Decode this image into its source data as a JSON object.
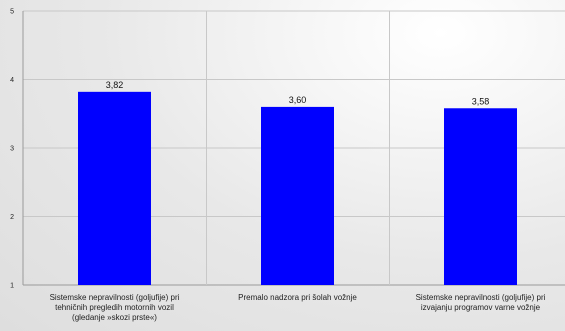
{
  "chart_data": {
    "type": "bar",
    "categories": [
      [
        "Sistemske nepravilnosti (goljufije) pri",
        "tehničnih pregledih motornih vozil",
        "(gledanje »skozi prste«)"
      ],
      [
        "Premalo nadzora pri šolah vožnje"
      ],
      [
        "Sistemske nepravilnosti (goljufije) pri",
        "izvajanju programov varne vožnje"
      ]
    ],
    "values": [
      3.82,
      3.6,
      3.58
    ],
    "value_labels": [
      "3,82",
      "3,60",
      "3,58"
    ],
    "y_ticks": [
      1,
      2,
      3,
      4,
      5
    ],
    "ylim": [
      1,
      5
    ],
    "grid": true,
    "title": "",
    "xlabel": "",
    "ylabel": "",
    "colors": {
      "bar": "#0000ff",
      "grid": "#c8c8c8",
      "axis": "#9a9a9a"
    }
  }
}
